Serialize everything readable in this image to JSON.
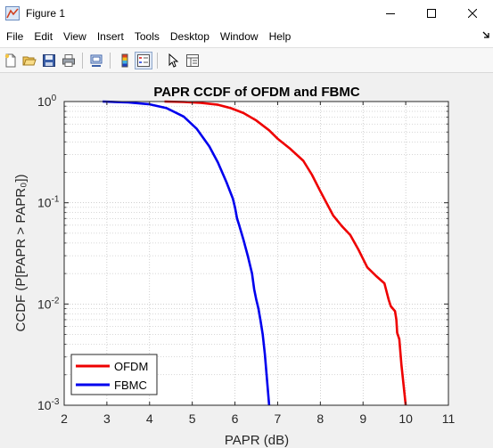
{
  "window": {
    "title": "Figure 1",
    "icon": "matlab-figure-icon",
    "controls": [
      "minimize-icon",
      "maximize-icon",
      "close-icon"
    ]
  },
  "menubar": {
    "items": [
      {
        "label": "File"
      },
      {
        "label": "Edit"
      },
      {
        "label": "View"
      },
      {
        "label": "Insert"
      },
      {
        "label": "Tools"
      },
      {
        "label": "Desktop"
      },
      {
        "label": "Window"
      },
      {
        "label": "Help"
      }
    ],
    "overflow_icon": "dock-arrow-icon"
  },
  "toolbar": {
    "buttons": [
      "new-figure-icon",
      "open-file-icon",
      "save-icon",
      "print-icon",
      "link-plot-icon",
      "insert-colorbar-icon",
      "insert-legend-icon",
      "edit-plot-icon",
      "property-inspector-icon"
    ]
  },
  "colors": {
    "ofdm": "#ee0000",
    "fbmc": "#0000ee",
    "axes_bg": "#ffffff",
    "figure_bg": "#f0f0f0",
    "grid": "#b0b0b0"
  },
  "chart_data": {
    "type": "line",
    "title": "PAPR CCDF of OFDM and FBMC",
    "xlabel": "PAPR (dB)",
    "ylabel": "CCDF (P[PAPR > PAPR₀])",
    "xlim": [
      2,
      11
    ],
    "ylim": [
      0.001,
      1
    ],
    "yscale": "log",
    "grid": true,
    "minor_grid": true,
    "xticks": [
      2,
      3,
      4,
      5,
      6,
      7,
      8,
      9,
      10,
      11
    ],
    "yticks": [
      {
        "value": 0.001,
        "base": "10",
        "exp": "-3"
      },
      {
        "value": 0.01,
        "base": "10",
        "exp": "-2"
      },
      {
        "value": 0.1,
        "base": "10",
        "exp": "-1"
      },
      {
        "value": 1,
        "base": "10",
        "exp": "0"
      }
    ],
    "legend": {
      "placement": "bottom-left"
    },
    "series": [
      {
        "name": "OFDM",
        "color": "#ee0000",
        "points": [
          [
            4.35,
            1.0
          ],
          [
            4.8,
            0.99
          ],
          [
            5.2,
            0.97
          ],
          [
            5.6,
            0.93
          ],
          [
            5.9,
            0.86
          ],
          [
            6.2,
            0.77
          ],
          [
            6.5,
            0.65
          ],
          [
            6.8,
            0.52
          ],
          [
            7.0,
            0.43
          ],
          [
            7.3,
            0.34
          ],
          [
            7.6,
            0.26
          ],
          [
            7.8,
            0.19
          ],
          [
            8.0,
            0.13
          ],
          [
            8.3,
            0.075
          ],
          [
            8.5,
            0.059
          ],
          [
            8.7,
            0.048
          ],
          [
            8.9,
            0.034
          ],
          [
            9.1,
            0.023
          ],
          [
            9.3,
            0.019
          ],
          [
            9.5,
            0.016
          ],
          [
            9.6,
            0.011
          ],
          [
            9.65,
            0.0095
          ],
          [
            9.75,
            0.0085
          ],
          [
            9.78,
            0.007
          ],
          [
            9.8,
            0.0052
          ],
          [
            9.85,
            0.0045
          ],
          [
            9.9,
            0.0025
          ],
          [
            10.0,
            0.001
          ]
        ]
      },
      {
        "name": "FBMC",
        "color": "#0000ee",
        "points": [
          [
            2.9,
            1.0
          ],
          [
            3.5,
            0.98
          ],
          [
            4.0,
            0.94
          ],
          [
            4.4,
            0.86
          ],
          [
            4.8,
            0.71
          ],
          [
            5.1,
            0.54
          ],
          [
            5.4,
            0.36
          ],
          [
            5.6,
            0.25
          ],
          [
            5.8,
            0.16
          ],
          [
            5.95,
            0.11
          ],
          [
            6.0,
            0.09
          ],
          [
            6.05,
            0.07
          ],
          [
            6.1,
            0.06
          ],
          [
            6.2,
            0.043
          ],
          [
            6.3,
            0.03
          ],
          [
            6.4,
            0.02
          ],
          [
            6.45,
            0.014
          ],
          [
            6.5,
            0.011
          ],
          [
            6.55,
            0.009
          ],
          [
            6.6,
            0.0068
          ],
          [
            6.65,
            0.005
          ],
          [
            6.7,
            0.0032
          ],
          [
            6.8,
            0.001
          ]
        ]
      }
    ]
  }
}
